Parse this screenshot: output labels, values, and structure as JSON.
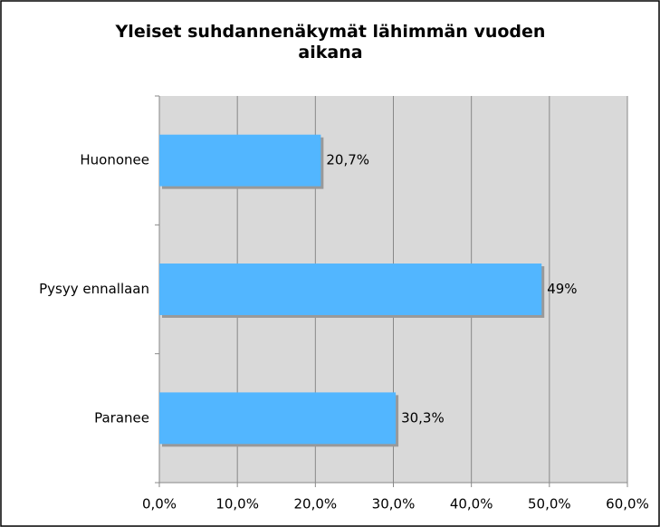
{
  "chart_data": {
    "type": "bar",
    "orientation": "horizontal",
    "title": "Yleiset suhdannenäkymät lähimmän vuoden aikana",
    "categories": [
      "Huononee",
      "Pysyy ennallaan",
      "Paranee"
    ],
    "values": [
      20.7,
      49,
      30.3
    ],
    "value_labels": [
      "20,7%",
      "49%",
      "30,3%"
    ],
    "color": "#52b6ff",
    "xlim": [
      0,
      60
    ],
    "xticks": [
      {
        "value": 0,
        "label": "0,0%"
      },
      {
        "value": 10,
        "label": "10,0%"
      },
      {
        "value": 20,
        "label": "20,0%"
      },
      {
        "value": 30,
        "label": "30,0%"
      },
      {
        "value": 40,
        "label": "40,0%"
      },
      {
        "value": 50,
        "label": "50,0%"
      },
      {
        "value": 60,
        "label": "60,0%"
      }
    ],
    "grid": true
  }
}
